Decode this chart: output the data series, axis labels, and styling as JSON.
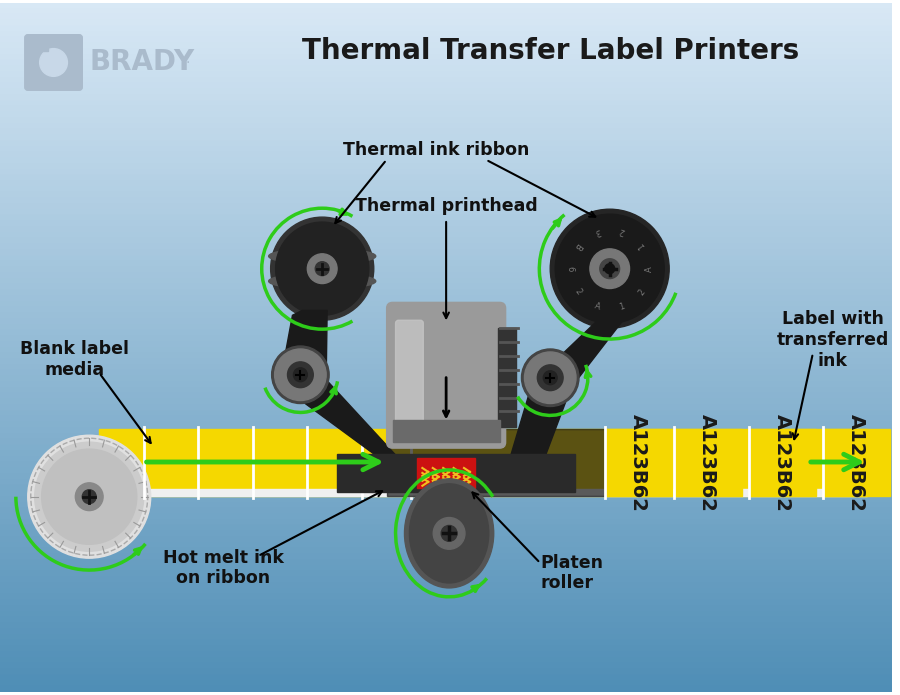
{
  "title": "Thermal Transfer Label Printers",
  "bg_top": "#dce8f3",
  "bg_bottom": "#5a9ec0",
  "brady_color": "#aabbcc",
  "label_color": "#111111",
  "yellow": "#f5d800",
  "black": "#1a1a1a",
  "dark_gray": "#333333",
  "med_gray": "#666666",
  "light_gray": "#aaaaaa",
  "green": "#2ecc1a",
  "red": "#cc1111",
  "white": "#ffffff",
  "labels": {
    "title": "Thermal Transfer Label Printers",
    "thermal_ink_ribbon": "Thermal ink ribbon",
    "thermal_printhead": "Thermal printhead",
    "blank_label": "Blank label\nmedia",
    "label_transferred": "Label with\ntransferred\nink",
    "hot_melt": "Hot melt ink\non ribbon",
    "platen": "Platen\nroller"
  }
}
